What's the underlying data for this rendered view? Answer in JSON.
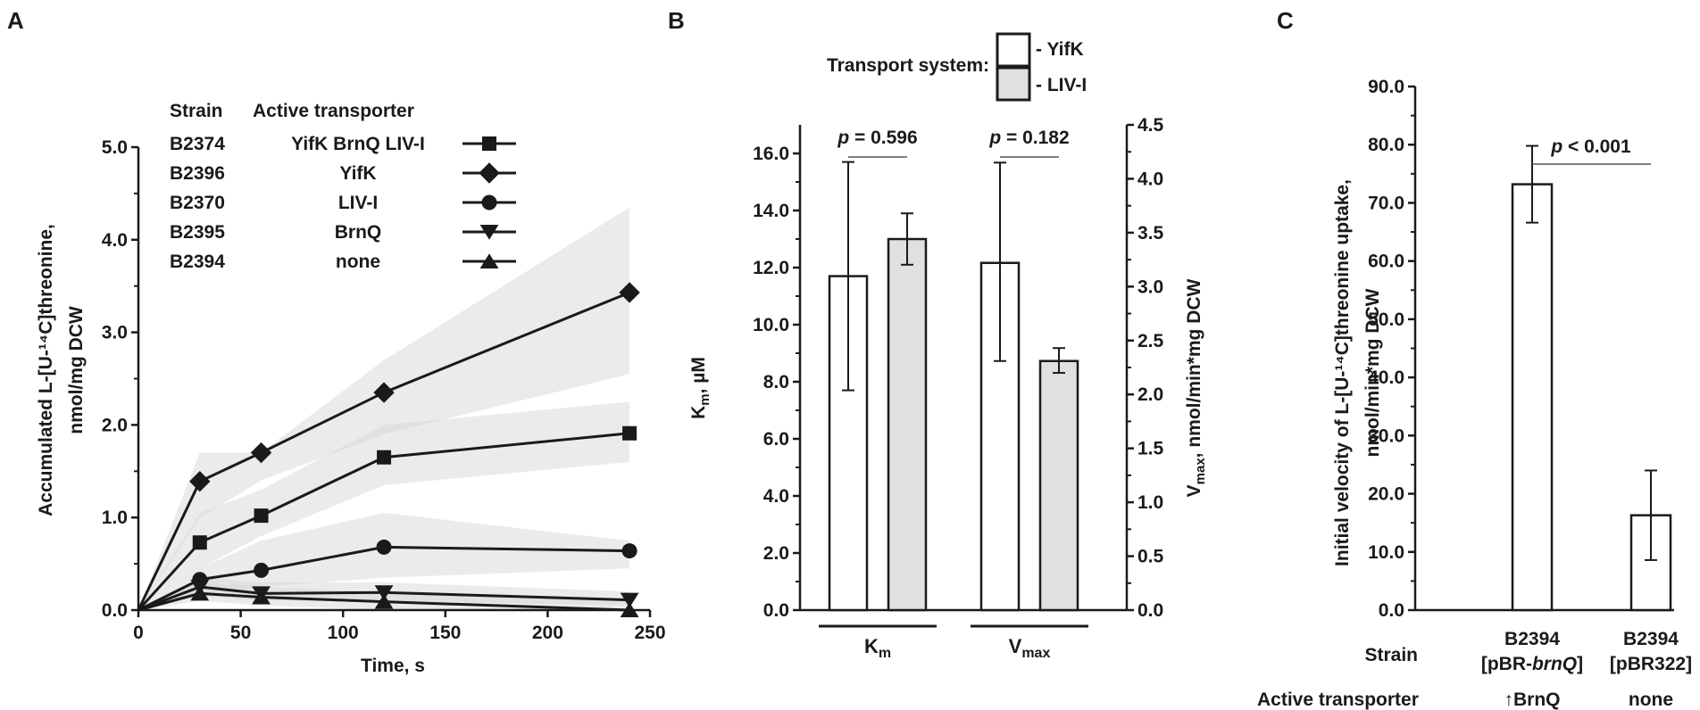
{
  "panels": {
    "a": "A",
    "b": "B",
    "c": "C"
  },
  "chart_data": [
    {
      "type": "line",
      "panel": "A",
      "xlabel": "Time, s",
      "ylabel_line1": "Accumulated L-[U-¹⁴C]threonine,",
      "ylabel_line2": "nmol/mg DCW",
      "xlim": [
        0,
        250
      ],
      "ylim": [
        0,
        5
      ],
      "xticks": [
        "0",
        "50",
        "100",
        "150",
        "200",
        "250"
      ],
      "yticks": [
        "0.0",
        "1.0",
        "2.0",
        "3.0",
        "4.0",
        "5.0"
      ],
      "legend_headers": {
        "strain": "Strain",
        "transporter": "Active transporter"
      },
      "series": [
        {
          "strain": "B2374",
          "transporter": "YifK BrnQ LIV-I",
          "marker": "square",
          "x": [
            0,
            30,
            60,
            120,
            240
          ],
          "values": [
            0,
            0.73,
            1.02,
            1.65,
            1.91
          ],
          "band_lo": [
            0,
            0.45,
            0.8,
            1.35,
            1.6
          ],
          "band_hi": [
            0,
            1.05,
            1.3,
            2.0,
            2.25
          ]
        },
        {
          "strain": "B2396",
          "transporter": "YifK",
          "marker": "diamond",
          "x": [
            0,
            30,
            60,
            120,
            240
          ],
          "values": [
            0,
            1.39,
            1.7,
            2.35,
            3.43
          ],
          "band_lo": [
            0,
            1.0,
            1.4,
            1.9,
            2.55
          ],
          "band_hi": [
            0,
            1.7,
            1.7,
            2.7,
            4.35
          ]
        },
        {
          "strain": "B2370",
          "transporter": "LIV-I",
          "marker": "circle",
          "x": [
            0,
            30,
            60,
            120,
            240
          ],
          "values": [
            0,
            0.33,
            0.43,
            0.68,
            0.64
          ],
          "band_lo": [
            0,
            0.2,
            0.25,
            0.35,
            0.45
          ],
          "band_hi": [
            0,
            0.45,
            0.75,
            1.05,
            0.75
          ]
        },
        {
          "strain": "B2395",
          "transporter": "BrnQ",
          "marker": "triangle-down",
          "x": [
            0,
            30,
            60,
            120,
            240
          ],
          "values": [
            0,
            0.25,
            0.18,
            0.19,
            0.11
          ],
          "band_lo": [
            0,
            0.15,
            0.1,
            0.1,
            0.05
          ],
          "band_hi": [
            0,
            0.35,
            0.3,
            0.3,
            0.2
          ]
        },
        {
          "strain": "B2394",
          "transporter": "none",
          "marker": "triangle-up",
          "x": [
            0,
            30,
            60,
            120,
            240
          ],
          "values": [
            0,
            0.18,
            0.14,
            0.09,
            0.0
          ],
          "band_lo": [
            0,
            0.1,
            0.05,
            0.0,
            0.0
          ],
          "band_hi": [
            0,
            0.3,
            0.25,
            0.2,
            0.1
          ]
        }
      ]
    },
    {
      "type": "bar",
      "panel": "B",
      "legend_title": "Transport system:",
      "legend": [
        {
          "label": "- YifK",
          "color": "#ffffff"
        },
        {
          "label": "- LIV-I",
          "color": "#e0e0e0"
        }
      ],
      "groups": [
        {
          "label": "Km",
          "label_main": "K",
          "label_sub": "m",
          "axis": "left",
          "p_label": "p = 0.596",
          "bars": [
            {
              "system": "YifK",
              "value": 11.7,
              "err_lo": 7.7,
              "err_hi": 15.7
            },
            {
              "system": "LIV-I",
              "value": 13.0,
              "err_lo": 12.1,
              "err_hi": 13.9
            }
          ]
        },
        {
          "label": "Vmax",
          "label_main": "V",
          "label_sub": "max",
          "axis": "right",
          "p_label": "p = 0.182",
          "bars": [
            {
              "system": "YifK",
              "value": 3.22,
              "err_lo": 2.31,
              "err_hi": 4.15
            },
            {
              "system": "LIV-I",
              "value": 2.31,
              "err_lo": 2.2,
              "err_hi": 2.43
            }
          ]
        }
      ],
      "left_axis": {
        "label_main": "K",
        "label_sub": "m",
        "label_rest": ", µM",
        "lim": [
          0,
          17
        ],
        "ticks": [
          "0.0",
          "2.0",
          "4.0",
          "6.0",
          "8.0",
          "10.0",
          "12.0",
          "14.0",
          "16.0"
        ]
      },
      "right_axis": {
        "label_main": "V",
        "label_sub": "max",
        "label_rest": ", nmol/min*mg DCW",
        "lim": [
          0,
          4.5
        ],
        "ticks": [
          "0.0",
          "0.5",
          "1.0",
          "1.5",
          "2.0",
          "2.5",
          "3.0",
          "3.5",
          "4.0",
          "4.5"
        ]
      }
    },
    {
      "type": "bar",
      "panel": "C",
      "ylabel_line1": "Initial velocity of L-[U-¹⁴C]threonine uptake,",
      "ylabel_line2": "nmol/min*mg DCW",
      "ylim": [
        0,
        90
      ],
      "yticks": [
        "0.0",
        "10.0",
        "20.0",
        "30.0",
        "40.0",
        "50.0",
        "60.0",
        "70.0",
        "80.0",
        "90.0"
      ],
      "row_labels": {
        "strain": "Strain",
        "transporter": "Active transporter"
      },
      "p_label": "p < 0.001",
      "bars": [
        {
          "strain": "B2394",
          "plasmid_pre": "[pBR-",
          "plasmid_italic": "brnQ",
          "plasmid_post": "]",
          "transporter": "↑BrnQ",
          "value": 73.2,
          "err_lo": 66.6,
          "err_hi": 79.8
        },
        {
          "strain": "B2394",
          "plasmid_pre": "[pBR322]",
          "plasmid_italic": "",
          "plasmid_post": "",
          "transporter": "none",
          "value": 16.3,
          "err_lo": 8.6,
          "err_hi": 24.0
        }
      ]
    }
  ]
}
